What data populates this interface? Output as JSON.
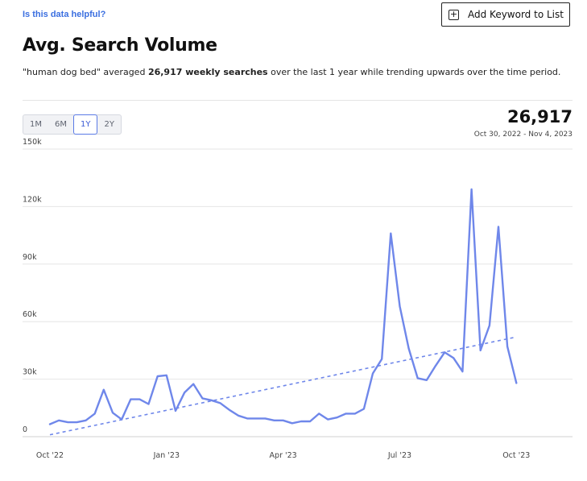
{
  "header": {
    "help_link": "Is this data helpful?",
    "add_button_label": "Add Keyword to List",
    "add_button_icon": "plus-square-icon"
  },
  "section": {
    "title": "Avg. Search Volume",
    "keyword_quoted": "\"human dog bed\"",
    "desc_mid": " averaged ",
    "highlight": "26,917 weekly searches",
    "desc_end": " over the last 1 year while trending upwards over the time period."
  },
  "range": {
    "options": [
      "1M",
      "6M",
      "1Y",
      "2Y"
    ],
    "selected": "1Y"
  },
  "summary": {
    "value": "26,917",
    "date_range": "Oct 30, 2022 - Nov 4, 2023"
  },
  "chart_data": {
    "type": "line",
    "title": "",
    "xlabel": "",
    "ylabel": "",
    "ylim": [
      0,
      150000
    ],
    "yticks": [
      0,
      30000,
      60000,
      90000,
      120000,
      150000
    ],
    "ytick_labels": [
      "0",
      "30k",
      "60k",
      "90k",
      "120k",
      "150k"
    ],
    "x_tick_labels": [
      "Oct '22",
      "Jan '23",
      "Apr '23",
      "Jul '23",
      "Oct '23"
    ],
    "x_tick_week_index": [
      0,
      13,
      26,
      39,
      52
    ],
    "grid": true,
    "series_color": "#6f87ea",
    "series": [
      {
        "values": [
          6500,
          8500,
          7500,
          7500,
          8500,
          12000,
          24500,
          12500,
          9000,
          19500,
          19500,
          17000,
          31500,
          32000,
          13500,
          23000,
          27500,
          20000,
          19000,
          17500,
          14000,
          11000,
          9500,
          9500,
          9500,
          8500,
          8500,
          7000,
          8000,
          8000,
          12000,
          9000,
          10000,
          12000,
          12000,
          14500,
          33000,
          40500,
          106000,
          68000,
          46000,
          30500,
          29500,
          37000,
          44000,
          41000,
          34000,
          129000,
          45000,
          58000,
          109500,
          47000,
          28000
        ]
      }
    ],
    "trendline": {
      "style": "dashed",
      "start": 1000,
      "end": 52000
    }
  }
}
